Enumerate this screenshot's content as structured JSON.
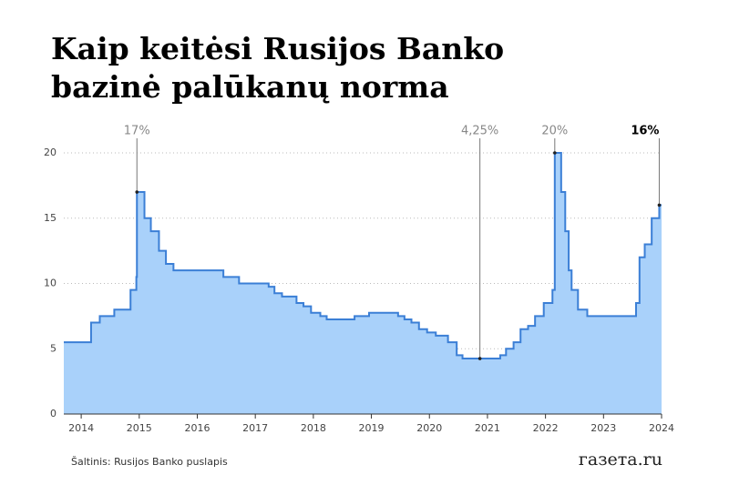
{
  "chart_data": {
    "type": "step-area",
    "title": [
      "Kaip keitėsi Rusijos Banko",
      "bazinė palūkanų norma"
    ],
    "x": [
      2013.7,
      2014.17,
      2014.32,
      2014.57,
      2014.85,
      2014.95,
      2014.96,
      2015.09,
      2015.2,
      2015.34,
      2015.46,
      2015.59,
      2016.45,
      2016.72,
      2017.23,
      2017.33,
      2017.46,
      2017.71,
      2017.83,
      2017.96,
      2018.12,
      2018.23,
      2018.71,
      2018.96,
      2019.46,
      2019.57,
      2019.69,
      2019.82,
      2019.96,
      2020.11,
      2020.32,
      2020.47,
      2020.57,
      2021.22,
      2021.32,
      2021.45,
      2021.57,
      2021.7,
      2021.82,
      2021.97,
      2022.12,
      2022.16,
      2022.27,
      2022.34,
      2022.4,
      2022.45,
      2022.56,
      2022.72,
      2023.56,
      2023.62,
      2023.71,
      2023.83,
      2023.96
    ],
    "values": [
      5.5,
      7,
      7.5,
      8,
      9.5,
      10.5,
      17,
      15,
      14,
      12.5,
      11.5,
      11,
      10.5,
      10,
      9.75,
      9.25,
      9,
      8.5,
      8.25,
      7.75,
      7.5,
      7.25,
      7.5,
      7.75,
      7.5,
      7.25,
      7,
      6.5,
      6.25,
      6,
      5.5,
      4.5,
      4.25,
      4.5,
      5,
      5.5,
      6.5,
      6.75,
      7.5,
      8.5,
      9.5,
      20,
      17,
      14,
      11,
      9.5,
      8,
      7.5,
      8.5,
      12,
      13,
      15,
      16
    ],
    "color": "#3b7fd6",
    "fill": "#a9d1fa",
    "xlim": [
      2013.7,
      2024
    ],
    "xticks": [
      2014,
      2015,
      2016,
      2017,
      2018,
      2019,
      2020,
      2021,
      2022,
      2023,
      2024
    ],
    "ylim": [
      0,
      20
    ],
    "yticks": [
      0,
      5,
      10,
      15,
      20
    ],
    "grid": true,
    "annotations": [
      {
        "label": "17%",
        "x": 2014.96,
        "value": 17
      },
      {
        "label": "4,25%",
        "x": 2020.87,
        "value": 4.25
      },
      {
        "label": "20%",
        "x": 2022.16,
        "value": 20
      },
      {
        "label": "16%",
        "x": 2023.96,
        "value": 16
      }
    ],
    "source": "Šaltinis: Rusijos Banko puslapis",
    "logo": "газета.ru"
  }
}
